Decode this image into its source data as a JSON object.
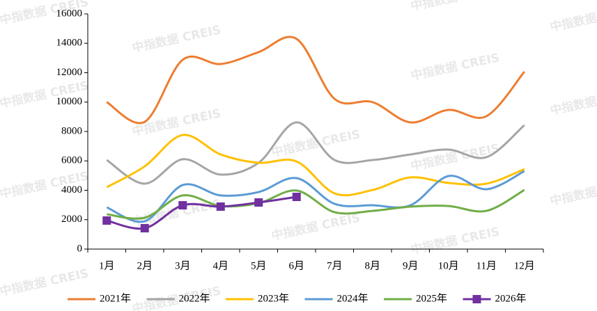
{
  "chart_data": {
    "type": "line",
    "watermark": "中指数据 CREIS",
    "categories": [
      "1月",
      "2月",
      "3月",
      "4月",
      "5月",
      "6月",
      "7月",
      "8月",
      "9月",
      "10月",
      "11月",
      "12月"
    ],
    "series": [
      {
        "name": "2021年",
        "color": "#ED7D31",
        "values": [
          10000,
          8660,
          12880,
          12590,
          13400,
          14300,
          10220,
          10000,
          8620,
          9470,
          9040,
          12070
        ]
      },
      {
        "name": "2022年",
        "color": "#A5A5A5",
        "values": [
          6060,
          4450,
          6110,
          5070,
          5870,
          8620,
          6060,
          6060,
          6440,
          6770,
          6250,
          8430
        ]
      },
      {
        "name": "2023年",
        "color": "#FFC000",
        "values": [
          4210,
          5630,
          7760,
          6440,
          5870,
          5960,
          3790,
          4020,
          4880,
          4500,
          4450,
          5440
        ]
      },
      {
        "name": "2024年",
        "color": "#5B9BD5",
        "values": [
          2840,
          1890,
          4360,
          3650,
          3880,
          4830,
          3080,
          2980,
          2980,
          4970,
          4070,
          5300
        ]
      },
      {
        "name": "2025年",
        "color": "#70AD47",
        "values": [
          2370,
          2130,
          3650,
          2930,
          3120,
          3980,
          2510,
          2600,
          2890,
          2930,
          2600,
          4020
        ]
      },
      {
        "name": "2026年",
        "color": "#7030A0",
        "marker": "square",
        "values": [
          1940,
          1420,
          2980,
          2890,
          3170,
          3550,
          null,
          null,
          null,
          null,
          null,
          null
        ]
      }
    ],
    "ylim": [
      0,
      16000
    ],
    "yticks": [
      0,
      2000,
      4000,
      6000,
      8000,
      10000,
      12000,
      14000,
      16000
    ],
    "grid": false,
    "legend": "bottom"
  }
}
